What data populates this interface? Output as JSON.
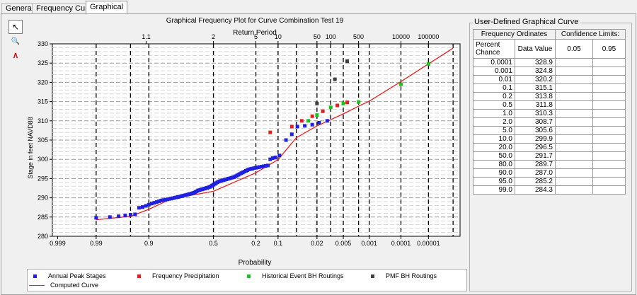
{
  "tabs": [
    {
      "label": "General",
      "active": false
    },
    {
      "label": "Frequency Curves",
      "active": false
    },
    {
      "label": "Graphical",
      "active": true
    }
  ],
  "toolbar": [
    {
      "name": "pointer-tool-icon",
      "glyph": "↖",
      "pressed": true
    },
    {
      "name": "zoom-tool-icon",
      "glyph": "🔍",
      "pressed": false
    },
    {
      "name": "draw-curve-tool-icon",
      "glyph": "∧",
      "pressed": false
    }
  ],
  "chart_data": {
    "type": "scatter",
    "title": "Graphical Frequency Plot for Curve Combination Test 19",
    "top_axis_label": "Return Period",
    "xlabel": "Probability",
    "ylabel": "Stage in feet NAVD88",
    "x_scale": "normal-probability (exceedance)",
    "ylim": [
      280,
      330
    ],
    "yticks": [
      280,
      285,
      290,
      295,
      300,
      305,
      310,
      315,
      320,
      325,
      330
    ],
    "xtick_labels": [
      "0.999",
      "0.99",
      "0.9",
      "0.5",
      "0.2",
      "0.1",
      "0.02",
      "0.005",
      "0.001",
      "0.0001",
      "0.00001"
    ],
    "xtick_values": [
      0.999,
      0.99,
      0.9,
      0.5,
      0.2,
      0.1,
      0.02,
      0.005,
      0.001,
      0.0001,
      1e-05
    ],
    "top_tick_labels": [
      "1.1",
      "2",
      "5",
      "10",
      "50",
      "100",
      "500",
      "10000",
      "100000"
    ],
    "top_tick_values": [
      1.1,
      2,
      5,
      10,
      50,
      100,
      500,
      10000,
      100000
    ],
    "dashed_gridlines_probability": [
      0.99,
      0.95,
      0.9,
      0.5,
      0.2,
      0.1,
      0.05,
      0.02,
      0.01,
      0.005,
      0.002,
      0.001,
      0.0001,
      1e-05,
      1e-06
    ],
    "grid": true,
    "legend_position": "bottom",
    "series": [
      {
        "name": "Annual Peak Stages",
        "color": "#2020e0",
        "marker": "square",
        "points": [
          [
            0.99,
            284.8
          ],
          [
            0.98,
            285.0
          ],
          [
            0.97,
            285.2
          ],
          [
            0.96,
            285.4
          ],
          [
            0.95,
            285.6
          ],
          [
            0.94,
            285.7
          ],
          [
            0.93,
            287.4
          ],
          [
            0.92,
            287.6
          ],
          [
            0.91,
            287.9
          ],
          [
            0.9,
            288.2
          ],
          [
            0.89,
            288.5
          ],
          [
            0.88,
            288.7
          ],
          [
            0.87,
            288.9
          ],
          [
            0.86,
            289.1
          ],
          [
            0.85,
            289.3
          ],
          [
            0.84,
            289.4
          ],
          [
            0.83,
            289.5
          ],
          [
            0.82,
            289.6
          ],
          [
            0.81,
            289.7
          ],
          [
            0.8,
            289.8
          ],
          [
            0.79,
            289.9
          ],
          [
            0.78,
            290.0
          ],
          [
            0.77,
            290.1
          ],
          [
            0.76,
            290.2
          ],
          [
            0.75,
            290.3
          ],
          [
            0.74,
            290.4
          ],
          [
            0.73,
            290.5
          ],
          [
            0.72,
            290.6
          ],
          [
            0.71,
            290.7
          ],
          [
            0.7,
            290.8
          ],
          [
            0.69,
            290.9
          ],
          [
            0.68,
            291.0
          ],
          [
            0.67,
            291.1
          ],
          [
            0.66,
            291.2
          ],
          [
            0.65,
            291.3
          ],
          [
            0.64,
            291.5
          ],
          [
            0.63,
            291.7
          ],
          [
            0.62,
            291.9
          ],
          [
            0.61,
            292.0
          ],
          [
            0.6,
            292.1
          ],
          [
            0.59,
            292.2
          ],
          [
            0.58,
            292.3
          ],
          [
            0.57,
            292.4
          ],
          [
            0.56,
            292.5
          ],
          [
            0.55,
            292.6
          ],
          [
            0.54,
            292.7
          ],
          [
            0.53,
            292.8
          ],
          [
            0.52,
            293.0
          ],
          [
            0.51,
            293.2
          ],
          [
            0.5,
            293.4
          ],
          [
            0.49,
            293.6
          ],
          [
            0.48,
            293.8
          ],
          [
            0.47,
            294.0
          ],
          [
            0.46,
            294.2
          ],
          [
            0.45,
            294.3
          ],
          [
            0.44,
            294.4
          ],
          [
            0.43,
            294.5
          ],
          [
            0.42,
            294.6
          ],
          [
            0.41,
            294.7
          ],
          [
            0.4,
            294.8
          ],
          [
            0.39,
            294.9
          ],
          [
            0.38,
            295.0
          ],
          [
            0.37,
            295.1
          ],
          [
            0.36,
            295.2
          ],
          [
            0.35,
            295.3
          ],
          [
            0.34,
            295.4
          ],
          [
            0.33,
            295.6
          ],
          [
            0.32,
            295.8
          ],
          [
            0.31,
            296.0
          ],
          [
            0.3,
            296.2
          ],
          [
            0.29,
            296.4
          ],
          [
            0.28,
            296.6
          ],
          [
            0.27,
            296.8
          ],
          [
            0.26,
            297.0
          ],
          [
            0.25,
            297.2
          ],
          [
            0.24,
            297.4
          ],
          [
            0.23,
            297.5
          ],
          [
            0.22,
            297.6
          ],
          [
            0.21,
            297.7
          ],
          [
            0.2,
            297.8
          ],
          [
            0.19,
            297.9
          ],
          [
            0.18,
            298.0
          ],
          [
            0.17,
            298.1
          ],
          [
            0.16,
            298.2
          ],
          [
            0.15,
            298.3
          ],
          [
            0.14,
            298.4
          ],
          [
            0.13,
            300.0
          ],
          [
            0.12,
            300.3
          ],
          [
            0.11,
            300.5
          ],
          [
            0.095,
            301.0
          ],
          [
            0.075,
            305.0
          ],
          [
            0.06,
            306.5
          ],
          [
            0.048,
            308.5
          ],
          [
            0.035,
            308.7
          ],
          [
            0.025,
            309.0
          ],
          [
            0.018,
            309.5
          ],
          [
            0.012,
            310.0
          ]
        ]
      },
      {
        "name": "Frequency Precipitation",
        "color": "#e02020",
        "marker": "square",
        "points": [
          [
            0.13,
            307.0
          ],
          [
            0.06,
            308.5
          ],
          [
            0.04,
            310.0
          ],
          [
            0.025,
            311.2
          ],
          [
            0.015,
            312.5
          ],
          [
            0.007,
            314.0
          ],
          [
            0.004,
            314.8
          ]
        ]
      },
      {
        "name": "Historical Event BH Routings",
        "color": "#20c020",
        "marker": "square",
        "points": [
          [
            0.03,
            310.0
          ],
          [
            0.02,
            311.5
          ],
          [
            0.01,
            313.5
          ],
          [
            0.005,
            314.5
          ],
          [
            0.002,
            314.9
          ],
          [
            0.0001,
            319.5
          ],
          [
            1e-05,
            324.8
          ]
        ]
      },
      {
        "name": "PMF BH Routings",
        "color": "#404040",
        "marker": "square",
        "points": [
          [
            0.02,
            314.5
          ],
          [
            0.008,
            320.8
          ],
          [
            0.004,
            325.5
          ]
        ]
      },
      {
        "name": "Computed Curve",
        "color": "#e62020",
        "marker": "line",
        "points": [
          [
            0.99,
            284.3
          ],
          [
            0.95,
            285.2
          ],
          [
            0.9,
            287.0
          ],
          [
            0.8,
            289.7
          ],
          [
            0.5,
            291.7
          ],
          [
            0.2,
            296.5
          ],
          [
            0.1,
            299.9
          ],
          [
            0.05,
            305.6
          ],
          [
            0.02,
            308.7
          ],
          [
            0.01,
            310.3
          ],
          [
            0.005,
            311.8
          ],
          [
            0.002,
            313.8
          ],
          [
            0.001,
            315.1
          ],
          [
            0.0001,
            320.2
          ],
          [
            1e-05,
            324.8
          ],
          [
            1e-06,
            328.9
          ]
        ]
      }
    ]
  },
  "table": {
    "title": "User-Defined Graphical Curve",
    "header1": [
      "Frequency Ordinates",
      "Confidence Limits:"
    ],
    "header2": [
      "Percent Chance",
      "Data Value",
      "0.05",
      "0.95"
    ],
    "rows": [
      [
        "0.0001",
        "328.9"
      ],
      [
        "0.001",
        "324.8"
      ],
      [
        "0.01",
        "320.2"
      ],
      [
        "0.1",
        "315.1"
      ],
      [
        "0.2",
        "313.8"
      ],
      [
        "0.5",
        "311.8"
      ],
      [
        "1.0",
        "310.3"
      ],
      [
        "2.0",
        "308.7"
      ],
      [
        "5.0",
        "305.6"
      ],
      [
        "10.0",
        "299.9"
      ],
      [
        "20.0",
        "296.5"
      ],
      [
        "50.0",
        "291.7"
      ],
      [
        "80.0",
        "289.7"
      ],
      [
        "90.0",
        "287.0"
      ],
      [
        "95.0",
        "285.2"
      ],
      [
        "99.0",
        "284.3"
      ]
    ]
  }
}
